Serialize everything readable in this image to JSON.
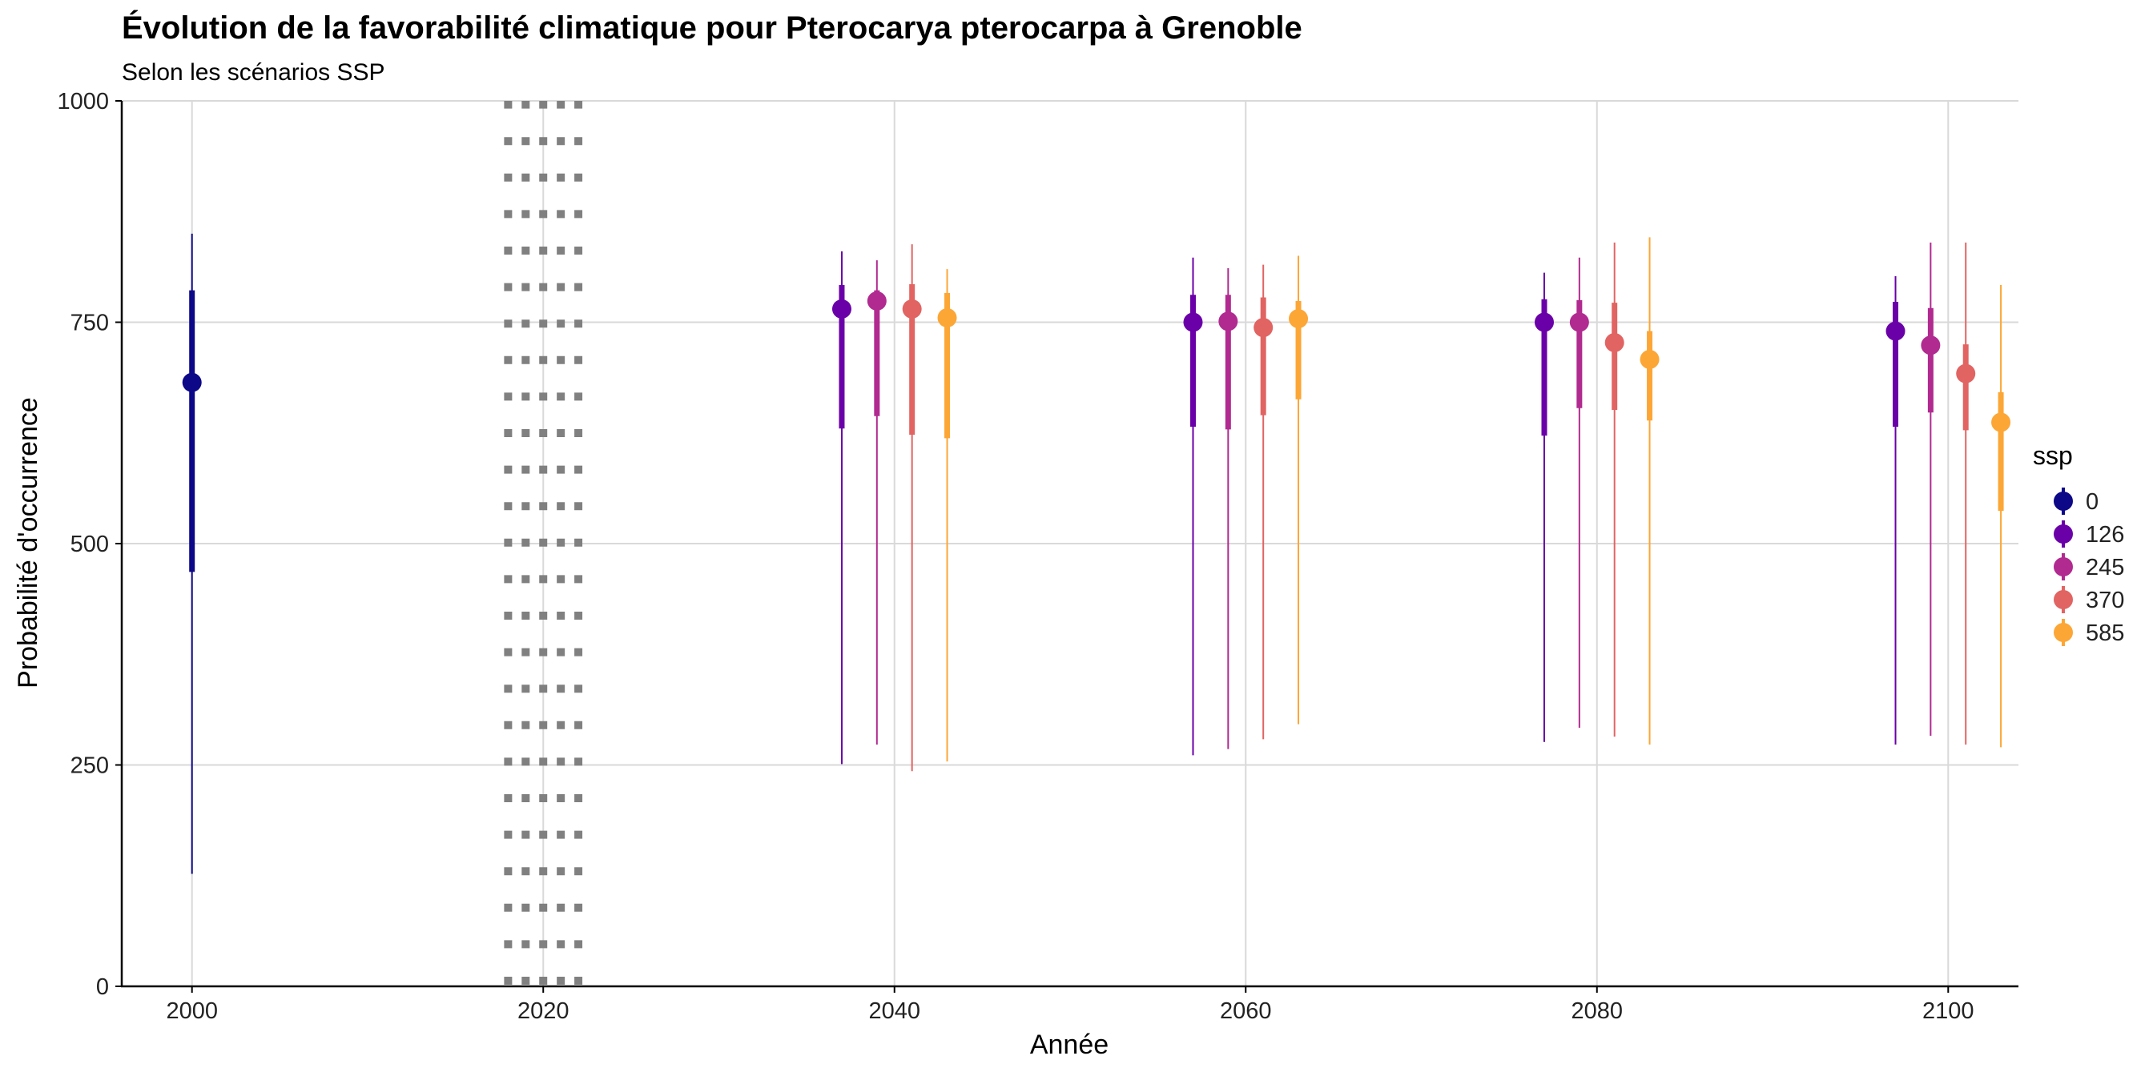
{
  "chart_data": {
    "type": "pointrange",
    "title": "Évolution de la favorabilité climatique pour Pterocarya pterocarpa à Grenoble",
    "subtitle": "Selon les scénarios SSP",
    "xlabel": "Année",
    "ylabel": "Probabilité d'occurrence",
    "xlim": [
      1996,
      2104
    ],
    "ylim": [
      0,
      1000
    ],
    "x_ticks": [
      2000,
      2020,
      2040,
      2060,
      2080,
      2100
    ],
    "y_ticks": [
      0,
      250,
      500,
      750,
      1000
    ],
    "grid": true,
    "reference_band": {
      "x_from": 2018,
      "x_to": 2022,
      "style": "dotted",
      "color": "#808080"
    },
    "legend": {
      "title": "ssp",
      "position": "right"
    },
    "colors": {
      "0": "#0d0887",
      "126": "#6a00a8",
      "245": "#b12a90",
      "370": "#e16462",
      "585": "#fca636"
    },
    "series": [
      {
        "name": "0",
        "points": [
          {
            "x": 2000,
            "y": 682,
            "inner": [
              468,
              786
            ],
            "outer": [
              127,
              850
            ]
          }
        ]
      },
      {
        "name": "126",
        "points": [
          {
            "x": 2037,
            "y": 765,
            "inner": [
              630,
              792
            ],
            "outer": [
              251,
              830
            ]
          },
          {
            "x": 2057,
            "y": 750,
            "inner": [
              632,
              781
            ],
            "outer": [
              261,
              823
            ]
          },
          {
            "x": 2077,
            "y": 750,
            "inner": [
              622,
              776
            ],
            "outer": [
              276,
              806
            ]
          },
          {
            "x": 2097,
            "y": 740,
            "inner": [
              632,
              773
            ],
            "outer": [
              273,
              802
            ]
          }
        ]
      },
      {
        "name": "245",
        "points": [
          {
            "x": 2039,
            "y": 774,
            "inner": [
              644,
              786
            ],
            "outer": [
              273,
              820
            ]
          },
          {
            "x": 2059,
            "y": 751,
            "inner": [
              629,
              781
            ],
            "outer": [
              268,
              811
            ]
          },
          {
            "x": 2079,
            "y": 750,
            "inner": [
              653,
              775
            ],
            "outer": [
              292,
              823
            ]
          },
          {
            "x": 2099,
            "y": 724,
            "inner": [
              648,
              766
            ],
            "outer": [
              283,
              840
            ]
          }
        ]
      },
      {
        "name": "370",
        "points": [
          {
            "x": 2041,
            "y": 765,
            "inner": [
              623,
              793
            ],
            "outer": [
              243,
              838
            ]
          },
          {
            "x": 2061,
            "y": 744,
            "inner": [
              645,
              778
            ],
            "outer": [
              279,
              815
            ]
          },
          {
            "x": 2081,
            "y": 727,
            "inner": [
              651,
              772
            ],
            "outer": [
              282,
              840
            ]
          },
          {
            "x": 2101,
            "y": 692,
            "inner": [
              628,
              725
            ],
            "outer": [
              273,
              840
            ]
          }
        ]
      },
      {
        "name": "585",
        "points": [
          {
            "x": 2043,
            "y": 755,
            "inner": [
              619,
              783
            ],
            "outer": [
              254,
              810
            ]
          },
          {
            "x": 2063,
            "y": 754,
            "inner": [
              663,
              774
            ],
            "outer": [
              296,
              825
            ]
          },
          {
            "x": 2083,
            "y": 708,
            "inner": [
              639,
              740
            ],
            "outer": [
              273,
              846
            ]
          },
          {
            "x": 2103,
            "y": 637,
            "inner": [
              537,
              671
            ],
            "outer": [
              270,
              792
            ]
          }
        ]
      }
    ]
  }
}
